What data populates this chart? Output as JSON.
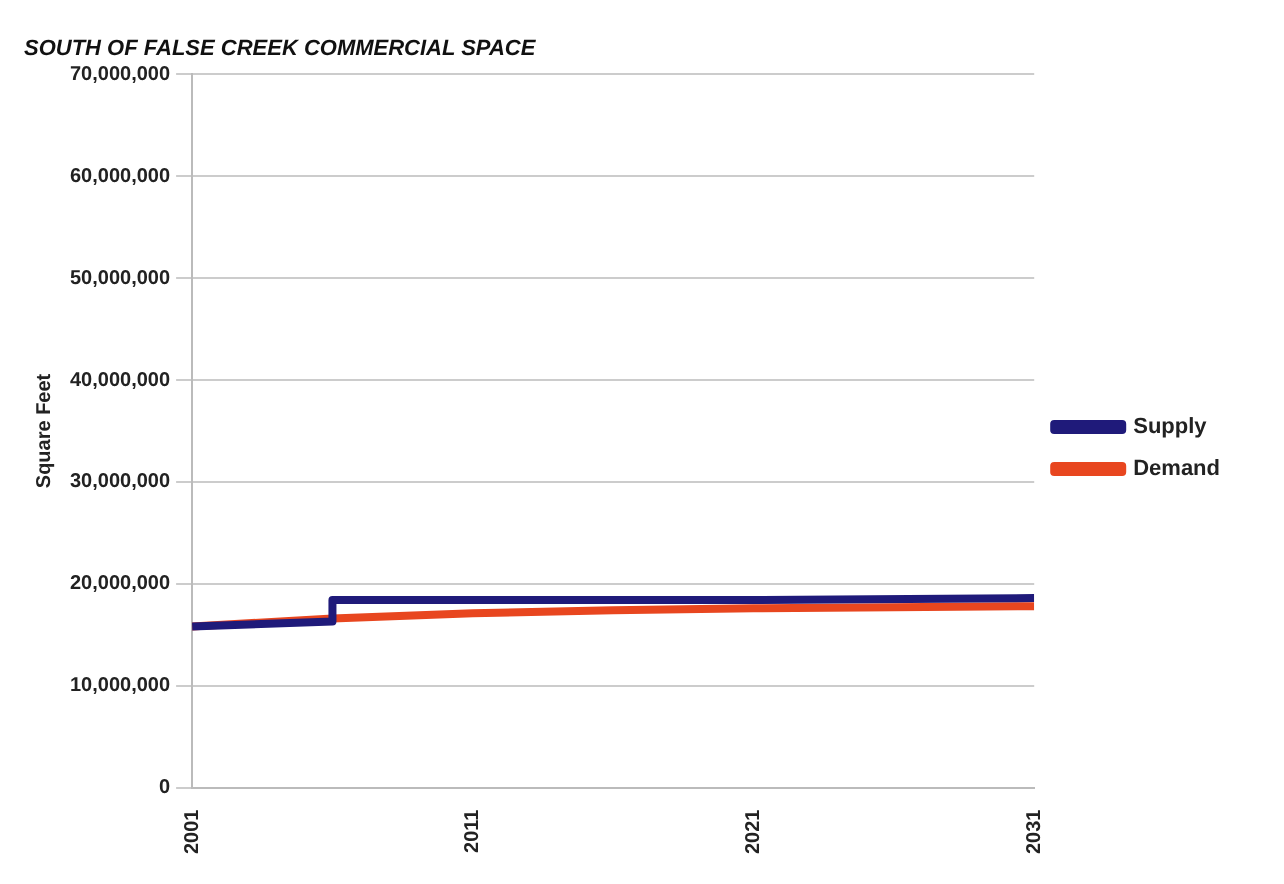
{
  "chart_data": {
    "type": "line",
    "title": "SOUTH OF FALSE CREEK COMMERCIAL SPACE",
    "ylabel": "Square Feet",
    "xlim": [
      2001,
      2031
    ],
    "xticks": [
      2001,
      2011,
      2021,
      2031
    ],
    "ylim": [
      0,
      70000000
    ],
    "yticks": [
      {
        "value": 0,
        "label": "0"
      },
      {
        "value": 10000000,
        "label": "10,000,000"
      },
      {
        "value": 20000000,
        "label": "20,000,000"
      },
      {
        "value": 30000000,
        "label": "30,000,000"
      },
      {
        "value": 40000000,
        "label": "40,000,000"
      },
      {
        "value": 50000000,
        "label": "50,000,000"
      },
      {
        "value": 60000000,
        "label": "60,000,000"
      },
      {
        "value": 70000000,
        "label": "70,000,000"
      }
    ],
    "grid": "y",
    "legend": "right",
    "marker": "none",
    "series": [
      {
        "name": "Supply",
        "color": "#1f1a7a",
        "x": [
          2001,
          2006,
          2006,
          2011,
          2021,
          2031
        ],
        "values": [
          15800000,
          16300000,
          18400000,
          18400000,
          18400000,
          18600000
        ]
      },
      {
        "name": "Demand",
        "color": "#e8461f",
        "x": [
          2001,
          2006,
          2011,
          2016,
          2021,
          2026,
          2031
        ],
        "values": [
          15800000,
          16600000,
          17100000,
          17400000,
          17600000,
          17700000,
          17800000
        ]
      }
    ]
  }
}
